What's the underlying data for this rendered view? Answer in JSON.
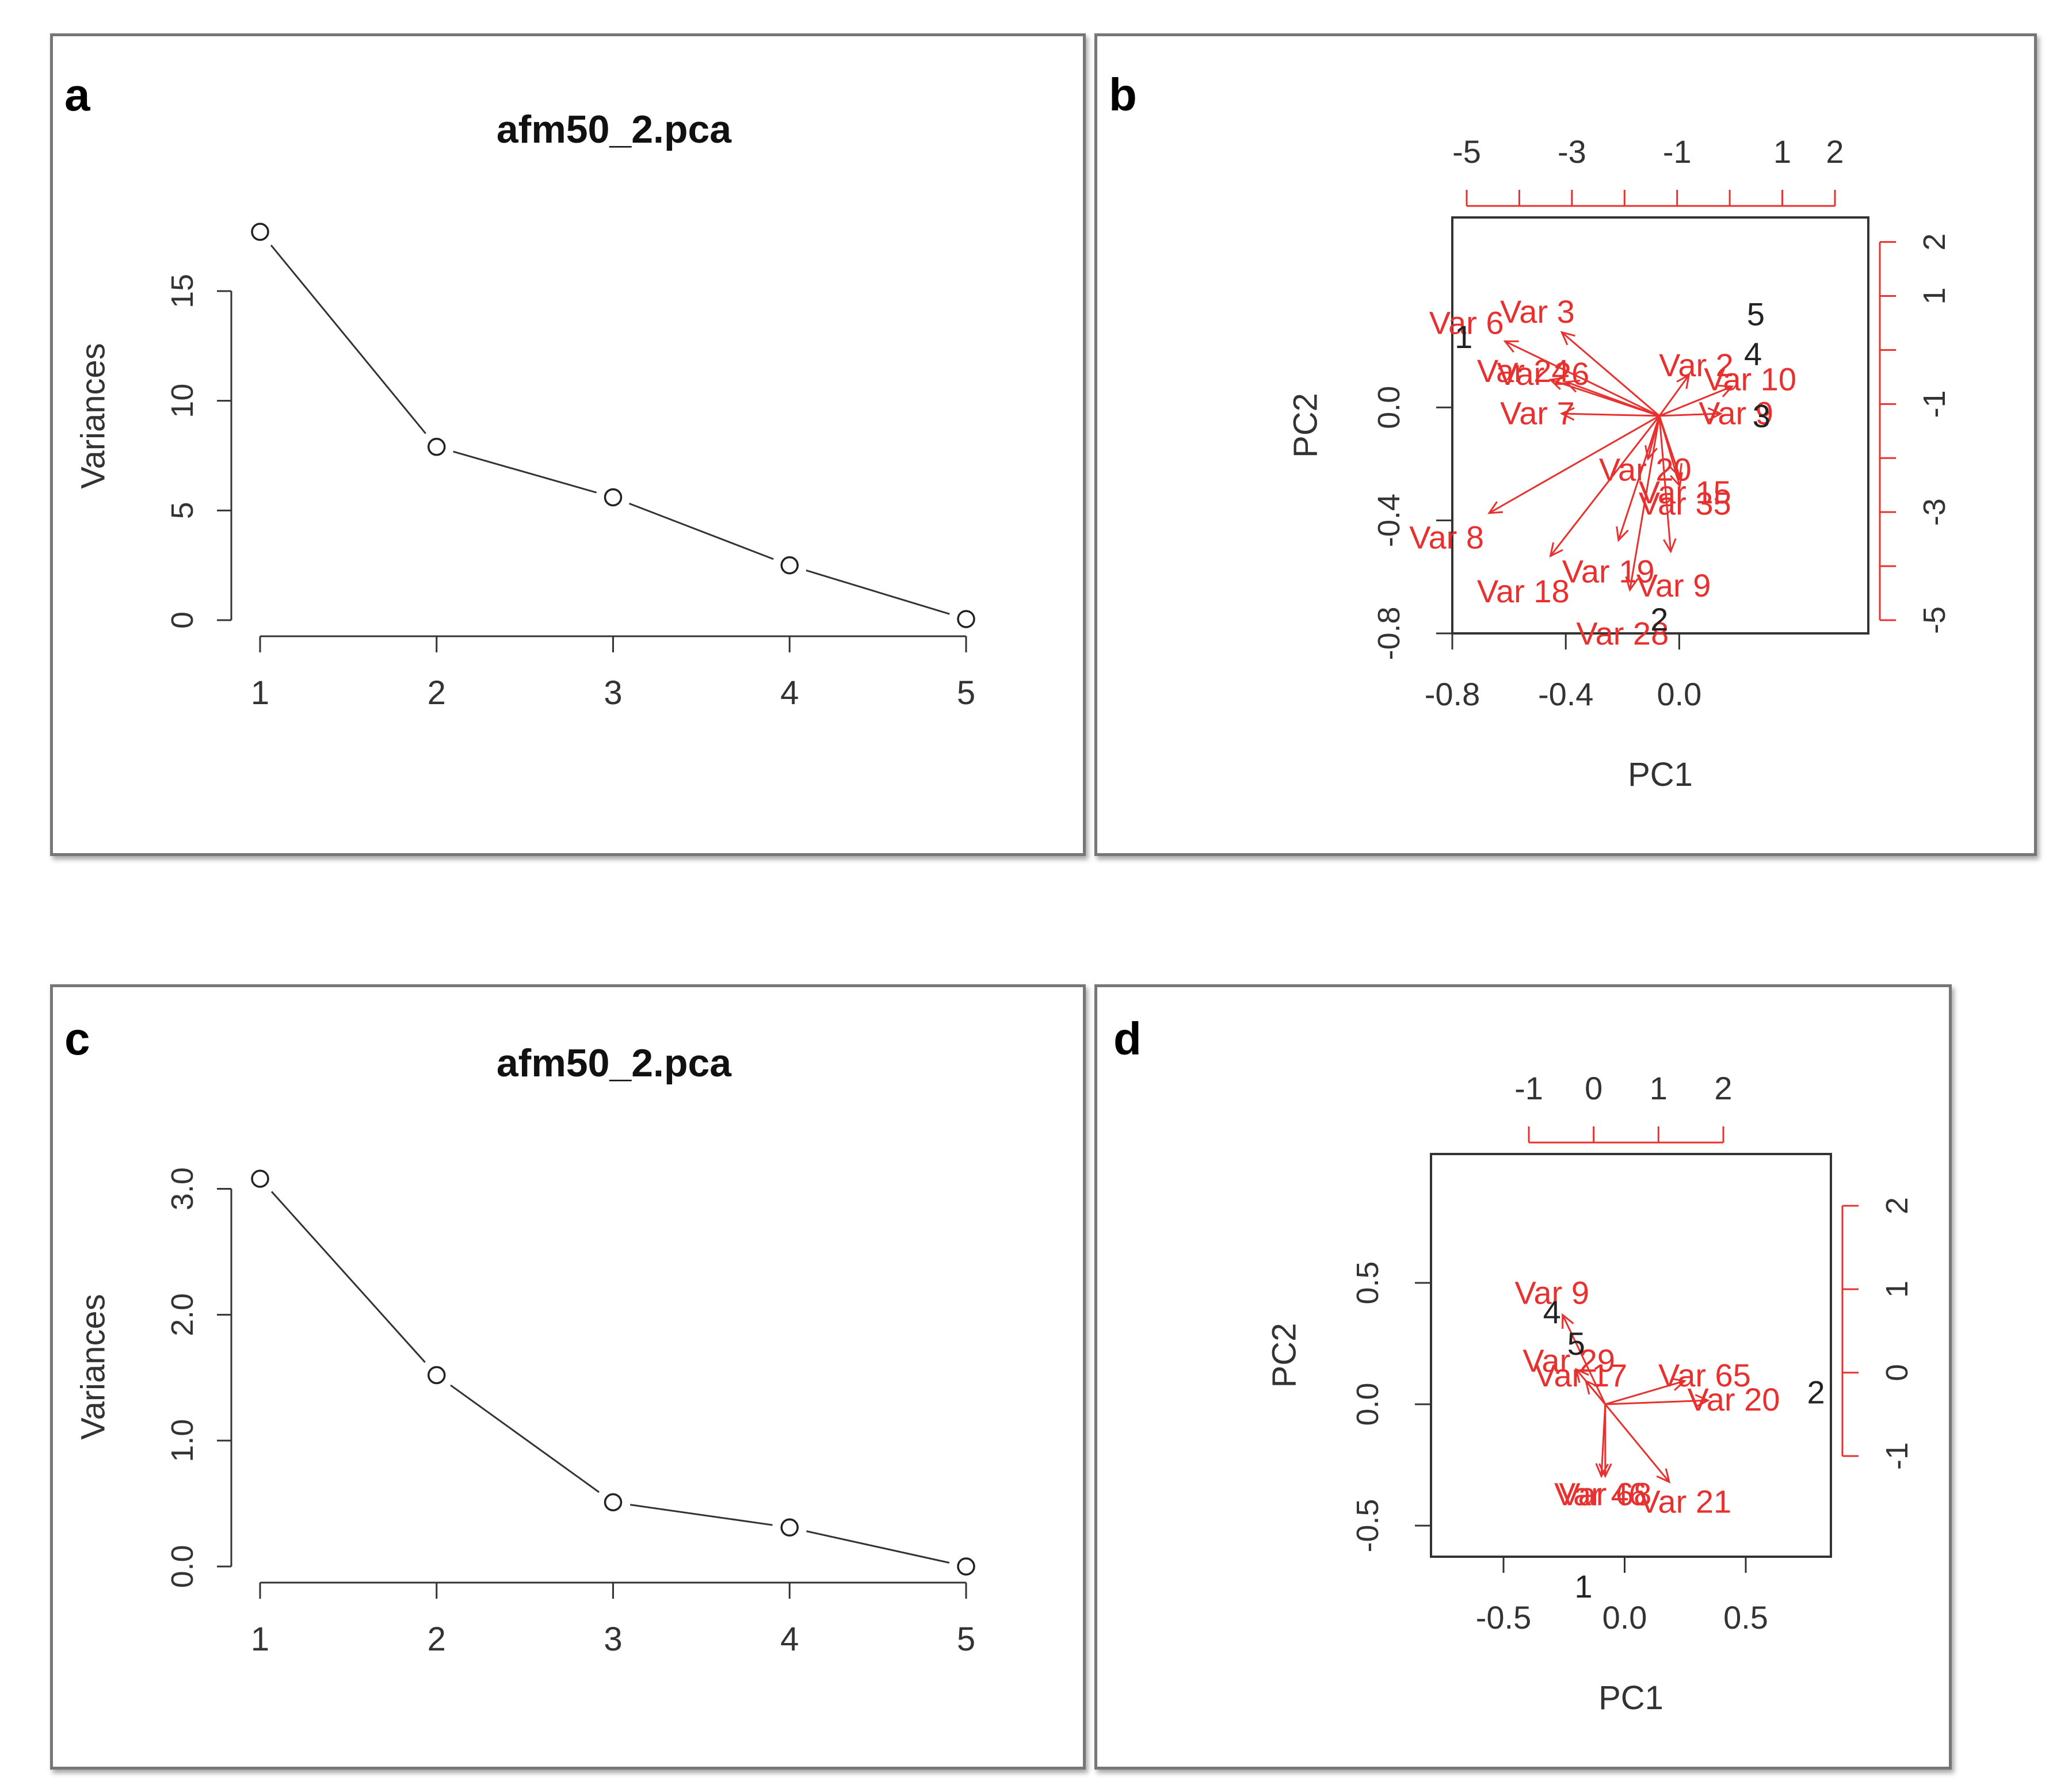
{
  "colors": {
    "red": "#e8302e",
    "black": "#222222",
    "frame": "#767676"
  },
  "chart_data": [
    {
      "panel": "a",
      "type": "line",
      "title": "afm50_2.pca",
      "xlabel": "",
      "ylabel": "Variances",
      "categories": [
        "1",
        "2",
        "3",
        "4",
        "5"
      ],
      "values": [
        17.7,
        7.9,
        5.6,
        2.5,
        0.05
      ],
      "xlim": [
        1,
        5
      ],
      "ylim": [
        0,
        17.7
      ],
      "yticks": [
        0,
        5,
        10,
        15
      ],
      "yticklabels": [
        "0",
        "5",
        "10",
        "15"
      ],
      "grid": false
    },
    {
      "panel": "b",
      "type": "scatter",
      "subtype": "biplot",
      "xlabel": "PC1",
      "ylabel": "PC2",
      "xlim": [
        -0.8,
        0.2
      ],
      "ylim": [
        -0.8,
        0.2
      ],
      "xticks": [
        -0.8,
        -0.4,
        0.0
      ],
      "xticklabels": [
        "-0.8",
        "-0.4",
        "0.0"
      ],
      "yticks": [
        -0.8,
        -0.4,
        0.0
      ],
      "yticklabels": [
        "-0.8",
        "-0.4",
        "0.0"
      ],
      "top_axis": {
        "ticks": [
          -5,
          -3,
          -1,
          1,
          2
        ],
        "labels": [
          "-5",
          "-3",
          "-1",
          "1",
          "2"
        ],
        "range": [
          -5,
          2
        ]
      },
      "right_axis": {
        "ticks": [
          -5,
          -3,
          -1,
          1,
          2
        ],
        "labels": [
          "-5",
          "-3",
          "-1",
          "1",
          "2"
        ],
        "range": [
          -5,
          2.4
        ]
      },
      "points": [
        {
          "label": "1",
          "x": -0.76,
          "y": 0.25
        },
        {
          "label": "2",
          "x": -0.07,
          "y": -0.75
        },
        {
          "label": "3",
          "x": 0.29,
          "y": -0.03
        },
        {
          "label": "4",
          "x": 0.26,
          "y": 0.19
        },
        {
          "label": "5",
          "x": 0.27,
          "y": 0.33
        }
      ],
      "arrow_origin": [
        -0.07,
        -0.03
      ],
      "arrows": [
        {
          "label": "Var 6",
          "x": -0.75,
          "y": 0.3
        },
        {
          "label": "Var 3",
          "x": -0.5,
          "y": 0.34
        },
        {
          "label": "Var 2",
          "x": 0.06,
          "y": 0.15
        },
        {
          "label": "Var 10",
          "x": 0.25,
          "y": 0.1
        },
        {
          "label": "Var 24",
          "x": -0.55,
          "y": 0.13
        },
        {
          "label": "Var 26",
          "x": -0.48,
          "y": 0.12
        },
        {
          "label": "Var 7",
          "x": -0.5,
          "y": -0.02
        },
        {
          "label": "Var 8",
          "x": -0.82,
          "y": -0.46
        },
        {
          "label": "Var 20",
          "x": -0.12,
          "y": -0.22
        },
        {
          "label": "Var 35",
          "x": 0.02,
          "y": -0.34
        },
        {
          "label": "Var 15",
          "x": 0.02,
          "y": -0.3
        },
        {
          "label": "Var 18",
          "x": -0.55,
          "y": -0.65
        },
        {
          "label": "Var 19",
          "x": -0.25,
          "y": -0.58
        },
        {
          "label": "Var 9",
          "x": -0.02,
          "y": -0.63
        },
        {
          "label": "Var 28",
          "x": -0.2,
          "y": -0.8
        },
        {
          "label": "Var 9",
          "x": 0.2,
          "y": -0.02
        }
      ]
    },
    {
      "panel": "c",
      "type": "line",
      "title": "afm50_2.pca",
      "xlabel": "",
      "ylabel": "Variances",
      "categories": [
        "1",
        "2",
        "3",
        "4",
        "5"
      ],
      "values": [
        3.08,
        1.52,
        0.51,
        0.31,
        0.0
      ],
      "xlim": [
        1,
        5
      ],
      "ylim": [
        0,
        3.08
      ],
      "yticks": [
        0,
        1,
        2,
        3
      ],
      "yticklabels": [
        "0.0",
        "1.0",
        "2.0",
        "3.0"
      ],
      "grid": false
    },
    {
      "panel": "d",
      "type": "scatter",
      "subtype": "biplot",
      "xlabel": "PC1",
      "ylabel": "PC2",
      "xlim": [
        -0.5,
        0.5
      ],
      "ylim": [
        -0.5,
        0.5
      ],
      "xticks": [
        -0.5,
        0.0,
        0.5
      ],
      "xticklabels": [
        "-0.5",
        "0.0",
        "0.5"
      ],
      "yticks": [
        -0.5,
        0.0,
        0.5
      ],
      "yticklabels": [
        "-0.5",
        "0.0",
        "0.5"
      ],
      "top_axis": {
        "ticks": [
          -1,
          0,
          1,
          2
        ],
        "labels": [
          "-1",
          "0",
          "1",
          "2"
        ],
        "range": [
          -1,
          2
        ]
      },
      "right_axis": {
        "ticks": [
          -1,
          0,
          1,
          2
        ],
        "labels": [
          "-1",
          "0",
          "1",
          "2"
        ],
        "range": [
          -1,
          2
        ]
      },
      "points": [
        {
          "label": "1",
          "x": -0.17,
          "y": -0.75
        },
        {
          "label": "2",
          "x": 0.79,
          "y": 0.05
        },
        {
          "label": "4",
          "x": -0.3,
          "y": 0.38
        },
        {
          "label": "5",
          "x": -0.2,
          "y": 0.25
        }
      ],
      "arrow_origin": [
        -0.08,
        0.0
      ],
      "arrows": [
        {
          "label": "Var 9",
          "x": -0.3,
          "y": 0.46
        },
        {
          "label": "Var 29",
          "x": -0.23,
          "y": 0.18
        },
        {
          "label": "Var 17",
          "x": -0.18,
          "y": 0.12
        },
        {
          "label": "Var 65",
          "x": 0.33,
          "y": 0.12
        },
        {
          "label": "Var 20",
          "x": 0.45,
          "y": 0.02
        },
        {
          "label": "Var 21",
          "x": 0.25,
          "y": -0.4
        },
        {
          "label": "Var 46",
          "x": -0.1,
          "y": -0.37
        },
        {
          "label": "Var 68",
          "x": -0.08,
          "y": -0.37
        }
      ]
    }
  ],
  "panels": [
    "a",
    "b",
    "c",
    "d"
  ]
}
